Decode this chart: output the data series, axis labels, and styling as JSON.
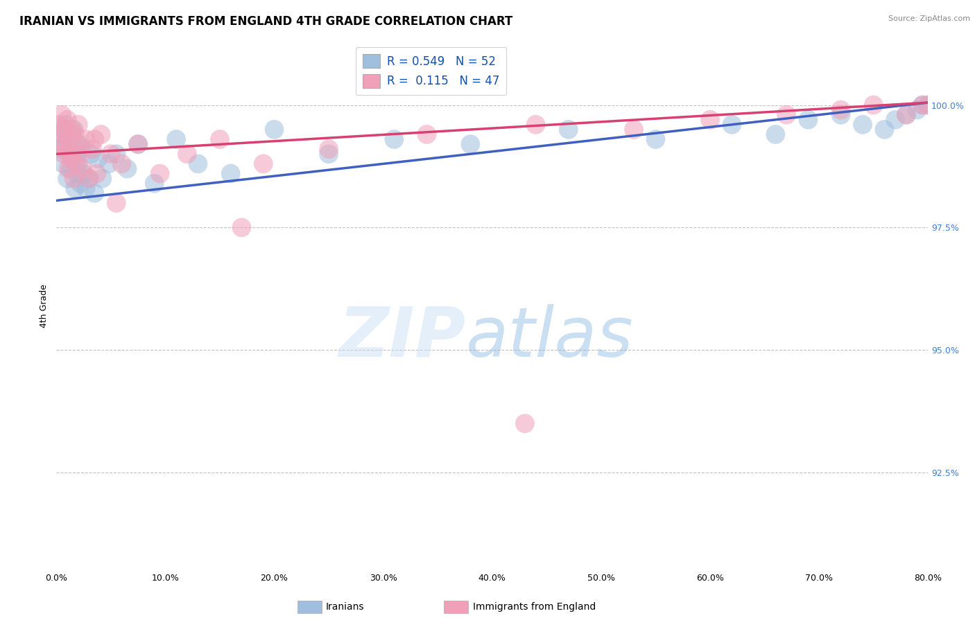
{
  "title": "IRANIAN VS IMMIGRANTS FROM ENGLAND 4TH GRADE CORRELATION CHART",
  "source_text": "Source: ZipAtlas.com",
  "ylabel": "4th Grade",
  "xlim": [
    0.0,
    80.0
  ],
  "ylim": [
    90.5,
    101.3
  ],
  "yticks": [
    92.5,
    95.0,
    97.5,
    100.0
  ],
  "ytick_labels": [
    "92.5%",
    "95.0%",
    "97.5%",
    "100.0%"
  ],
  "xticks": [
    0.0,
    10.0,
    20.0,
    30.0,
    40.0,
    50.0,
    60.0,
    70.0,
    80.0
  ],
  "xtick_labels": [
    "0.0%",
    "10.0%",
    "20.0%",
    "30.0%",
    "40.0%",
    "50.0%",
    "60.0%",
    "70.0%",
    "80.0%"
  ],
  "blue_color": "#a0bede",
  "pink_color": "#f0a0b8",
  "blue_line_color": "#4060c0",
  "pink_line_color": "#d84070",
  "legend_blue_label": "R = 0.549   N = 52",
  "legend_pink_label": "R =  0.115   N = 47",
  "dashed_line_y1": 99.35,
  "dashed_line_y2": 97.5,
  "blue_trend_x0": 0.0,
  "blue_trend_y0": 98.05,
  "blue_trend_x1": 80.0,
  "blue_trend_y1": 100.05,
  "pink_trend_x0": 0.0,
  "pink_trend_y0": 99.0,
  "pink_trend_x1": 80.0,
  "pink_trend_y1": 100.05,
  "blue_scatter_x": [
    0.4,
    0.5,
    0.6,
    0.7,
    0.8,
    0.9,
    1.0,
    1.1,
    1.2,
    1.3,
    1.4,
    1.5,
    1.6,
    1.7,
    1.8,
    1.9,
    2.0,
    2.1,
    2.2,
    2.3,
    2.5,
    2.7,
    3.0,
    3.2,
    3.5,
    3.8,
    4.2,
    4.8,
    5.5,
    6.5,
    7.5,
    9.0,
    11.0,
    13.0,
    16.0,
    20.0,
    25.0,
    31.0,
    38.0,
    47.0,
    55.0,
    62.0,
    66.0,
    69.0,
    72.0,
    74.0,
    76.0,
    77.0,
    78.0,
    79.0,
    79.5,
    80.0
  ],
  "blue_scatter_y": [
    99.4,
    99.1,
    98.8,
    99.5,
    99.2,
    99.6,
    98.5,
    99.3,
    99.0,
    98.7,
    99.4,
    98.9,
    99.5,
    98.3,
    99.0,
    98.6,
    98.8,
    99.2,
    98.4,
    99.1,
    98.6,
    98.3,
    98.5,
    99.0,
    98.2,
    98.9,
    98.5,
    98.8,
    99.0,
    98.7,
    99.2,
    98.4,
    99.3,
    98.8,
    98.6,
    99.5,
    99.0,
    99.3,
    99.2,
    99.5,
    99.3,
    99.6,
    99.4,
    99.7,
    99.8,
    99.6,
    99.5,
    99.7,
    99.8,
    99.9,
    100.0,
    100.0
  ],
  "pink_scatter_x": [
    0.3,
    0.4,
    0.5,
    0.6,
    0.7,
    0.8,
    0.9,
    1.0,
    1.1,
    1.2,
    1.3,
    1.4,
    1.5,
    1.6,
    1.7,
    1.8,
    1.9,
    2.0,
    2.2,
    2.4,
    2.7,
    3.0,
    3.3,
    3.7,
    4.1,
    5.0,
    6.0,
    7.5,
    9.5,
    12.0,
    15.0,
    19.0,
    25.0,
    34.0,
    44.0,
    53.0,
    60.0,
    67.0,
    72.0,
    75.0,
    78.0,
    79.5,
    80.0,
    43.0,
    17.0,
    3.5,
    5.5
  ],
  "pink_scatter_y": [
    99.6,
    99.2,
    99.8,
    99.4,
    99.0,
    99.5,
    99.1,
    99.7,
    98.7,
    99.3,
    98.9,
    99.5,
    99.0,
    98.5,
    99.4,
    98.8,
    99.2,
    99.6,
    99.0,
    98.7,
    99.3,
    98.5,
    99.1,
    98.6,
    99.4,
    99.0,
    98.8,
    99.2,
    98.6,
    99.0,
    99.3,
    98.8,
    99.1,
    99.4,
    99.6,
    99.5,
    99.7,
    99.8,
    99.9,
    100.0,
    99.8,
    100.0,
    100.0,
    93.5,
    97.5,
    99.3,
    98.0
  ]
}
